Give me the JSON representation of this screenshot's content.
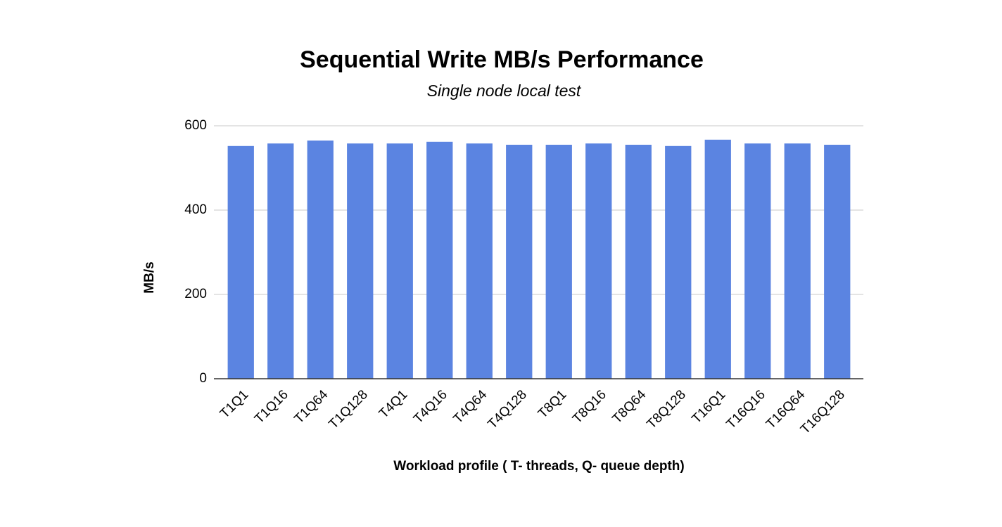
{
  "chart_data": {
    "type": "bar",
    "title": "Sequential Write MB/s Performance",
    "subtitle": "Single node local test",
    "x_label": "Workload profile ( T- threads, Q- queue depth)",
    "y_label": "MB/s",
    "categories": [
      "T1Q1",
      "T1Q16",
      "T1Q64",
      "T1Q128",
      "T4Q1",
      "T4Q16",
      "T4Q64",
      "T4Q128",
      "T8Q1",
      "T8Q16",
      "T8Q64",
      "T8Q128",
      "T16Q1",
      "T16Q16",
      "T16Q64",
      "T16Q128"
    ],
    "values": [
      552,
      558,
      565,
      558,
      558,
      562,
      558,
      555,
      555,
      558,
      555,
      552,
      567,
      558,
      558,
      555
    ],
    "color": "#5b84e1",
    "ylim": [
      0,
      600
    ],
    "yticks": [
      0,
      200,
      400,
      600
    ],
    "grid": true
  }
}
